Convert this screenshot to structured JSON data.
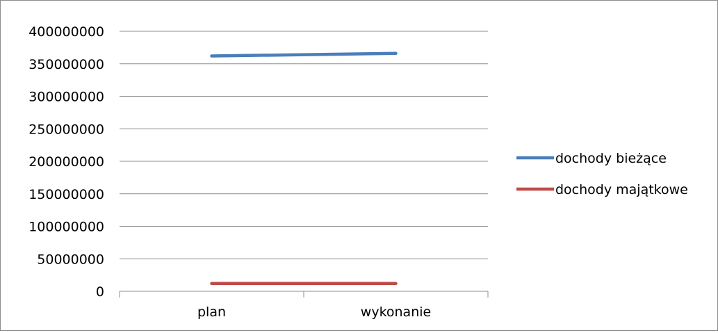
{
  "chart_data": {
    "type": "line",
    "categories": [
      "plan",
      "wykonanie"
    ],
    "series": [
      {
        "name": "dochody bieżące",
        "values": [
          362000000,
          366000000
        ],
        "color": "#4a7ebb"
      },
      {
        "name": "dochody majątkowe",
        "values": [
          12000000,
          12000000
        ],
        "color": "#be4b48"
      }
    ],
    "y_ticks": [
      "0",
      "50000000",
      "100000000",
      "150000000",
      "200000000",
      "250000000",
      "300000000",
      "350000000",
      "400000000"
    ],
    "ylim": [
      0,
      400000000
    ],
    "grid": "horizontal",
    "legend_position": "right"
  }
}
